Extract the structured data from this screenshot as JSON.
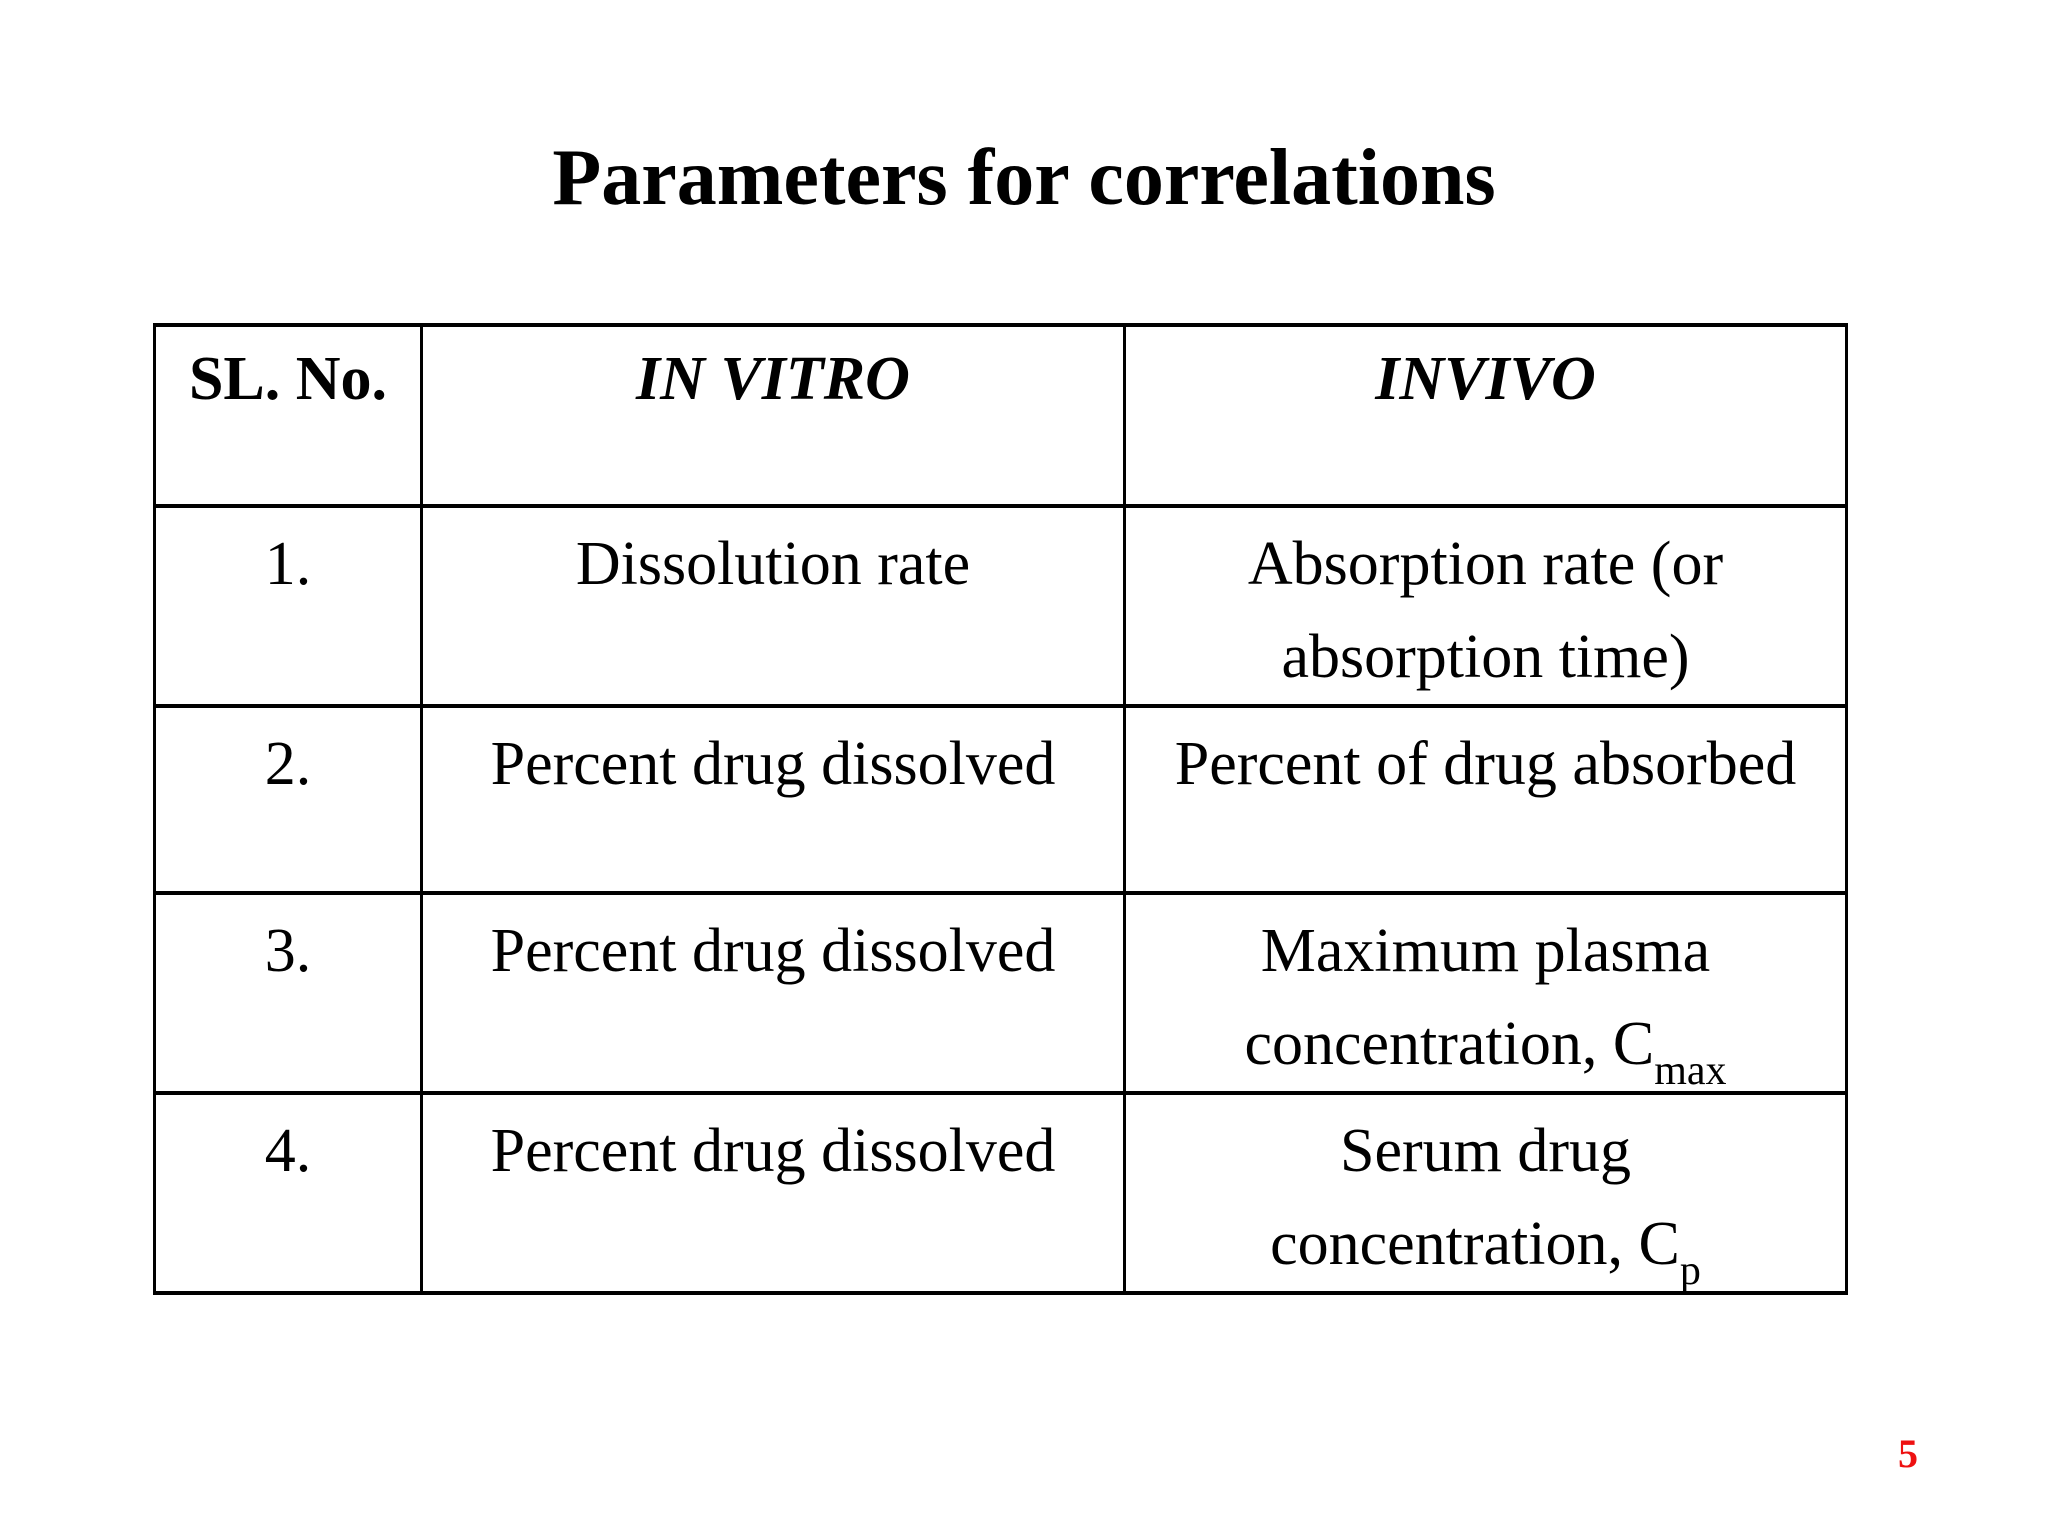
{
  "slide": {
    "title": "Parameters for correlations",
    "page_number": "5",
    "page_number_color": "#ee1111",
    "background_color": "#ffffff",
    "text_color": "#000000"
  },
  "table": {
    "header": {
      "sl_no": "SL. No.",
      "in_vitro": "IN VITRO",
      "in_vivo": "INVIVO"
    },
    "rows": [
      {
        "no": "1.",
        "in_vitro": "Dissolution rate",
        "in_vivo_line1": "Absorption rate (or",
        "in_vivo_line2": "absorption time)",
        "in_vivo_subscript": ""
      },
      {
        "no": "2.",
        "in_vitro": "Percent drug dissolved",
        "in_vivo_line1": "Percent of drug absorbed",
        "in_vivo_line2": "",
        "in_vivo_subscript": ""
      },
      {
        "no": "3.",
        "in_vitro": "Percent drug dissolved",
        "in_vivo_line1": "Maximum plasma",
        "in_vivo_line2": "concentration, C",
        "in_vivo_subscript": "max"
      },
      {
        "no": "4.",
        "in_vitro": "Percent drug dissolved",
        "in_vivo_line1": "Serum drug",
        "in_vivo_line2": "concentration, C",
        "in_vivo_subscript": "p"
      }
    ]
  }
}
